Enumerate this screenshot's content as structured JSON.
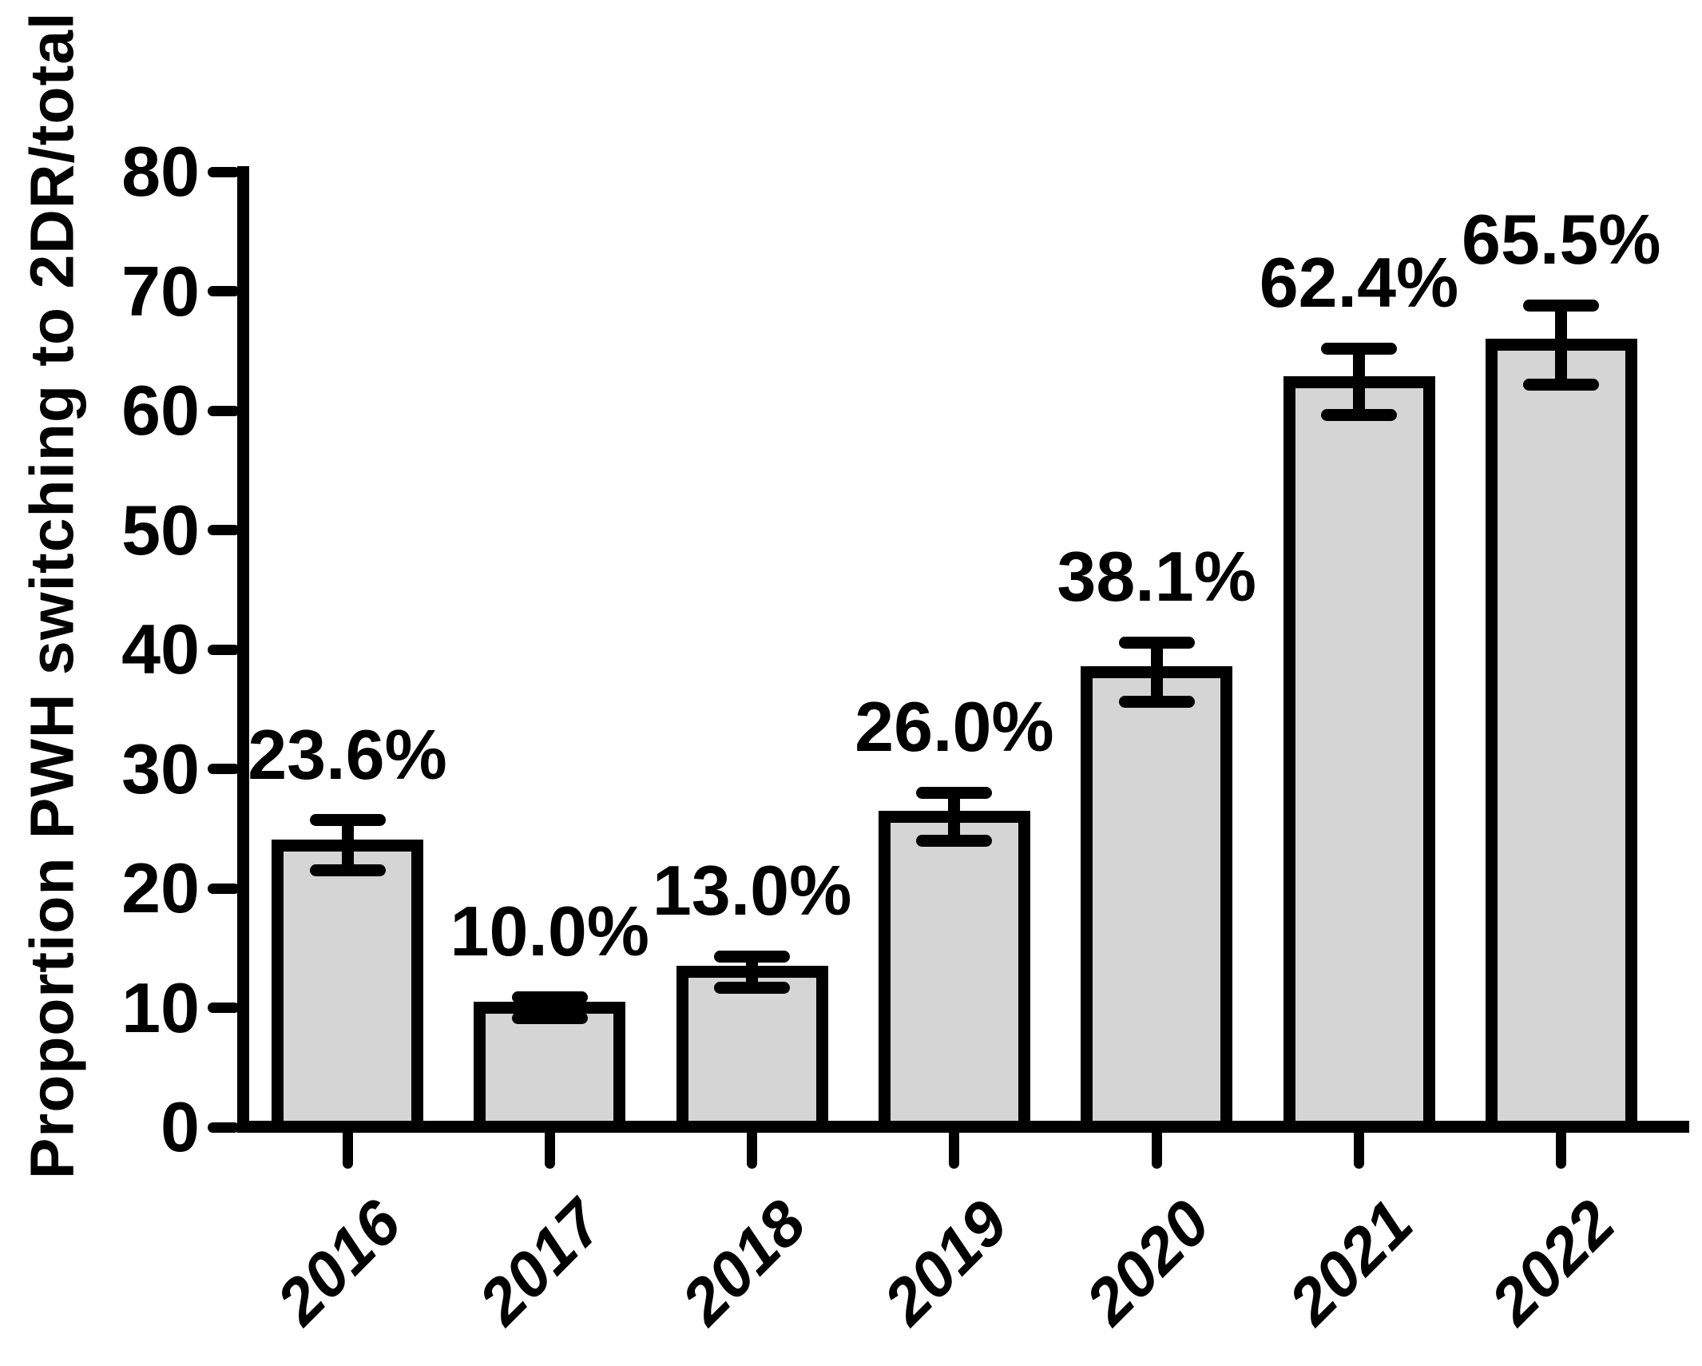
{
  "chart_data": {
    "type": "bar",
    "title": "",
    "ylabel": "Proportion PWH switching to 2DR/total (%)",
    "xlabel": "",
    "categories": [
      "2016",
      "2017",
      "2018",
      "2019",
      "2020",
      "2021",
      "2022"
    ],
    "values": [
      23.6,
      10.0,
      13.0,
      26.0,
      38.1,
      62.4,
      65.5
    ],
    "bar_labels": [
      "23.6%",
      "10.0%",
      "13.0%",
      "26.0%",
      "38.1%",
      "62.4%",
      "65.5%"
    ],
    "errors": [
      2.1,
      0.9,
      1.3,
      2.0,
      2.5,
      2.8,
      3.3
    ],
    "ylim": [
      0,
      80
    ],
    "yticks": [
      0,
      10,
      20,
      30,
      40,
      50,
      60,
      70,
      80
    ],
    "grid": false,
    "legend_position": "none",
    "colors": {
      "bar_fill": "#d5d5d5",
      "stroke": "#000000",
      "background": "#ffffff"
    }
  }
}
